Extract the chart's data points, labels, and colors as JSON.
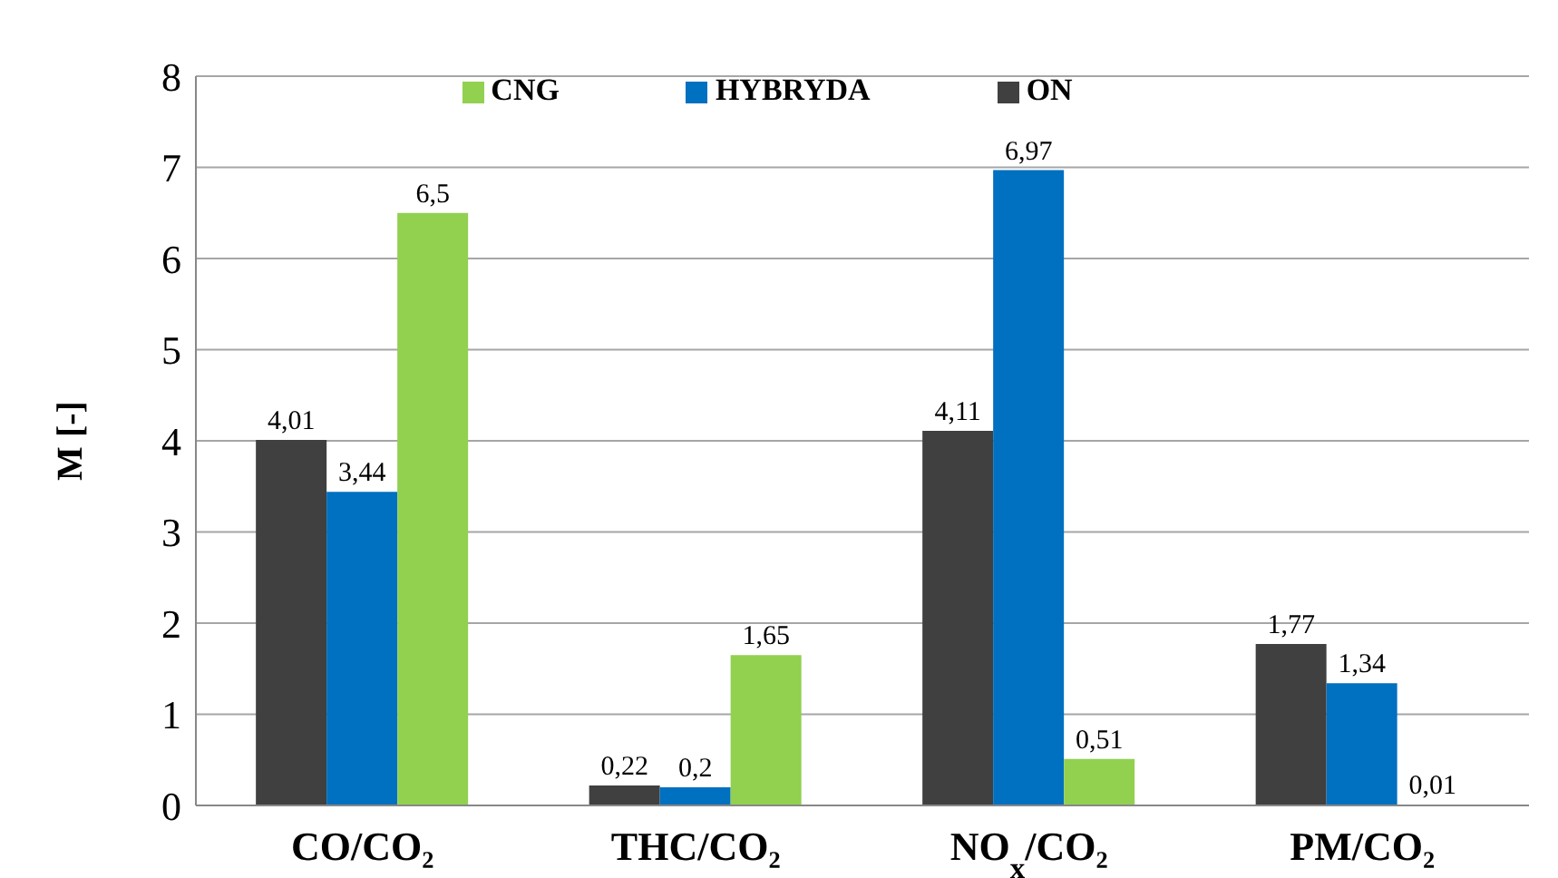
{
  "chart_data": {
    "type": "bar",
    "ylabel": "M [-]",
    "categories": [
      "CO/CO₂",
      "THC/CO₂",
      "NO$_{x}$/CO₂",
      "PM/CO₂"
    ],
    "series": [
      {
        "name": "ON",
        "color": "#404040",
        "values": [
          4.01,
          0.22,
          4.11,
          1.77
        ],
        "value_labels": [
          "4,01",
          "0,22",
          "4,11",
          "1,77"
        ]
      },
      {
        "name": "HYBRYDA",
        "color": "#0070c0",
        "values": [
          3.44,
          0.2,
          6.97,
          1.34
        ],
        "value_labels": [
          "3,44",
          "0,2",
          "6,97",
          "1,34"
        ]
      },
      {
        "name": "CNG",
        "color": "#92d050",
        "values": [
          6.5,
          1.65,
          0.51,
          0.01
        ],
        "value_labels": [
          "6,5",
          "1,65",
          "0,51",
          "0,01"
        ]
      }
    ],
    "ylim": [
      0,
      8
    ],
    "yticks": [
      0,
      1,
      2,
      3,
      4,
      5,
      6,
      7,
      8
    ],
    "grid": "y",
    "legend": "top"
  }
}
